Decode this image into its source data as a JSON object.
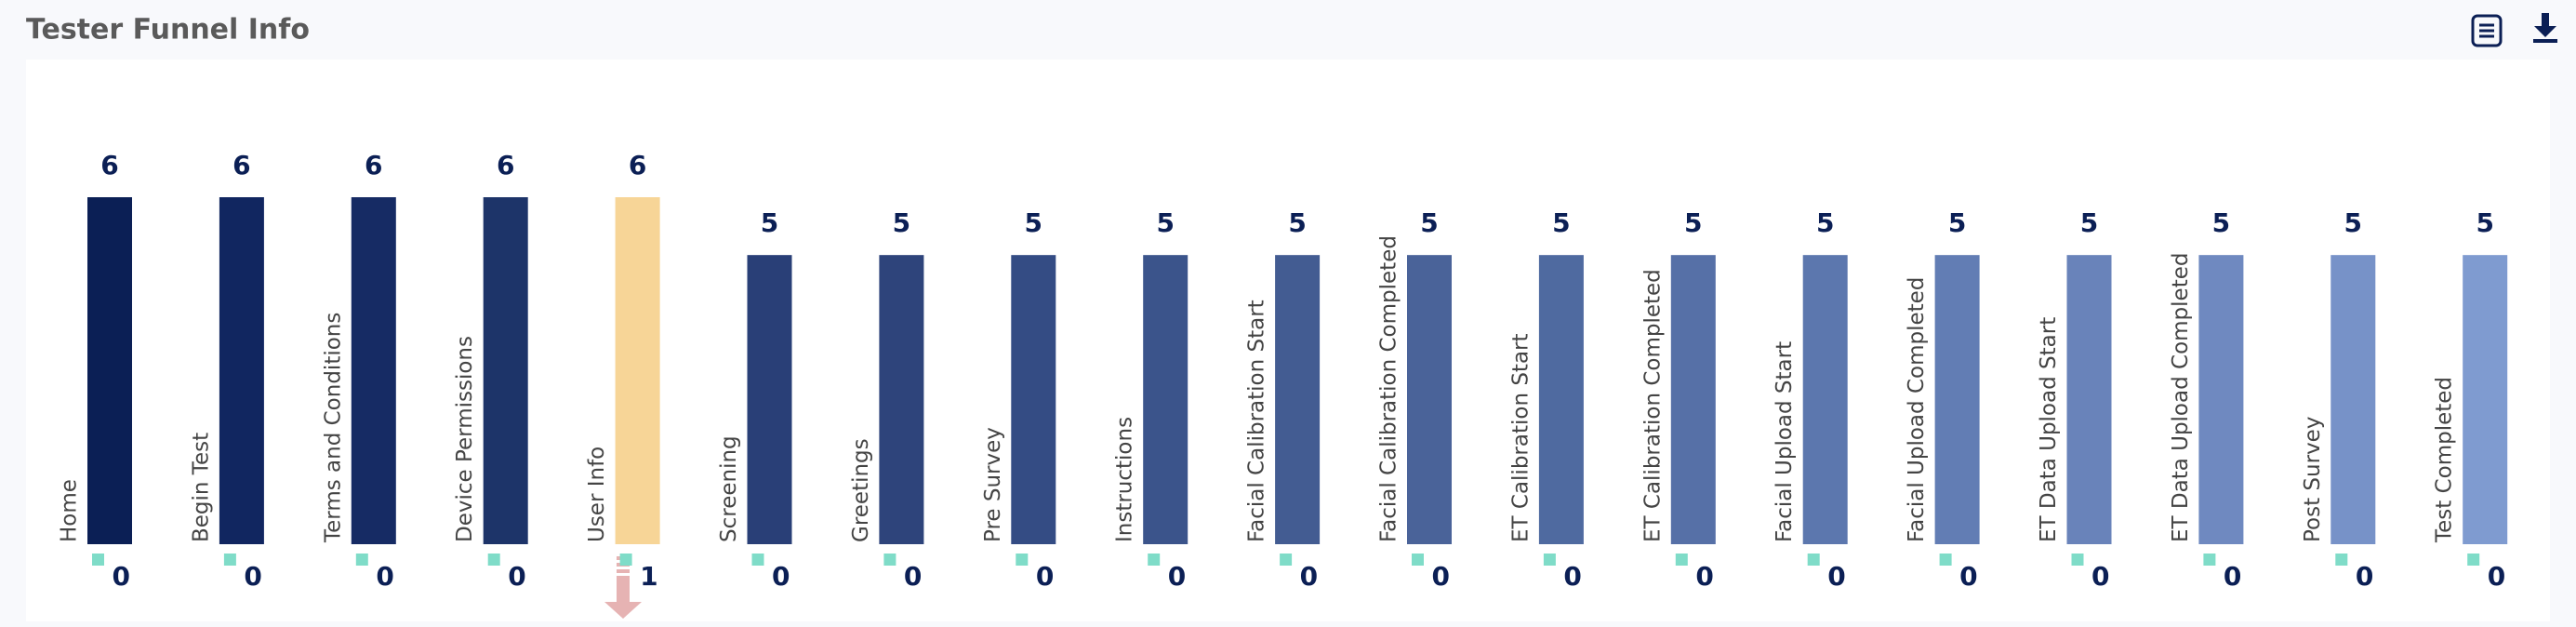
{
  "chart_data": {
    "type": "bar",
    "title": "Tester Funnel Info",
    "categories": [
      "Home",
      "Begin Test",
      "Terms and Conditions",
      "Device Permissions",
      "User Info",
      "Screening",
      "Greetings",
      "Pre Survey",
      "Instructions",
      "Facial Calibration Start",
      "Facial Calibration Completed",
      "ET Calibration Start",
      "ET Calibration Completed",
      "Facial Upload Start",
      "Facial Upload Completed",
      "ET Data Upload Start",
      "ET Data Upload Completed",
      "Post Survey",
      "Test Completed"
    ],
    "values": [
      6,
      6,
      6,
      6,
      6,
      5,
      5,
      5,
      5,
      5,
      5,
      5,
      5,
      5,
      5,
      5,
      5,
      5,
      5
    ],
    "colors": [
      "#0b1f55",
      "#112660",
      "#162b64",
      "#1d3469",
      "#f7d597",
      "#293f77",
      "#2e447b",
      "#344c84",
      "#3b548b",
      "#435c92",
      "#4a6399",
      "#4f6aa0",
      "#5670a7",
      "#5c77ae",
      "#627db4",
      "#6983ba",
      "#6f89c0",
      "#7792c8",
      "#7f9bd0"
    ],
    "dropoffs": [
      0,
      0,
      0,
      0,
      1,
      0,
      0,
      0,
      0,
      0,
      0,
      0,
      0,
      0,
      0,
      0,
      0,
      0,
      0
    ],
    "dropoff_color": "#7fdcc8"
  }
}
